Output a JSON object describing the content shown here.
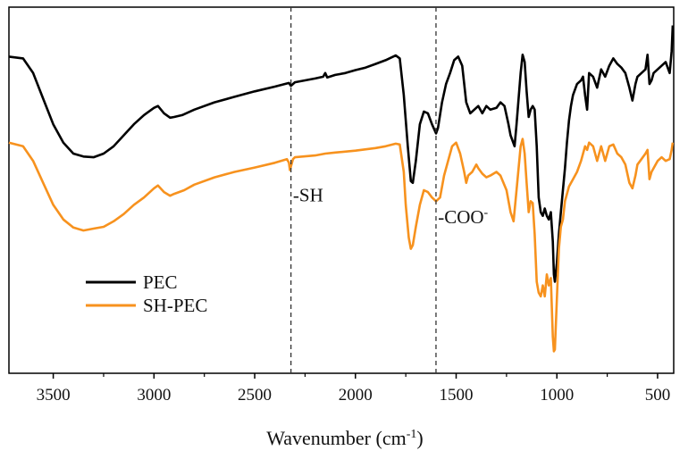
{
  "chart_data": {
    "type": "line",
    "title": "",
    "xlabel": "Wavenumber (cm",
    "xlabel_sup": "-1",
    "xlabel_close": ")",
    "ylabel": "",
    "xlim": [
      3720,
      420
    ],
    "ylim": [
      0,
      100
    ],
    "x_ticks": [
      {
        "value": 3500,
        "label": "3500"
      },
      {
        "value": 3000,
        "label": "3000"
      },
      {
        "value": 2500,
        "label": "2500"
      },
      {
        "value": 2000,
        "label": "2000"
      },
      {
        "value": 1500,
        "label": "1500"
      },
      {
        "value": 1000,
        "label": "1000"
      },
      {
        "value": 500,
        "label": "500"
      }
    ],
    "reference_lines": [
      {
        "x": 2320,
        "style": "dashed"
      },
      {
        "x": 1600,
        "style": "dashed"
      }
    ],
    "annotations": [
      {
        "x": 2310,
        "y": 47,
        "text": "-SH",
        "sup": ""
      },
      {
        "x": 1590,
        "y": 41,
        "text": "-COO",
        "sup": "-"
      }
    ],
    "legend": {
      "position": "lower-left",
      "entries": [
        {
          "label": "PEC",
          "color": "#000000"
        },
        {
          "label": "SH-PEC",
          "color": "#f7921e"
        }
      ]
    },
    "series": [
      {
        "name": "PEC",
        "color": "#000000",
        "points": [
          [
            3720,
            86.5
          ],
          [
            3650,
            86
          ],
          [
            3600,
            82
          ],
          [
            3550,
            75
          ],
          [
            3500,
            68
          ],
          [
            3450,
            63
          ],
          [
            3400,
            60
          ],
          [
            3350,
            59.2
          ],
          [
            3300,
            59
          ],
          [
            3250,
            60
          ],
          [
            3200,
            62
          ],
          [
            3150,
            65
          ],
          [
            3100,
            68
          ],
          [
            3050,
            70.5
          ],
          [
            3000,
            72.5
          ],
          [
            2980,
            73
          ],
          [
            2950,
            71
          ],
          [
            2920,
            69.8
          ],
          [
            2900,
            70
          ],
          [
            2860,
            70.5
          ],
          [
            2800,
            72
          ],
          [
            2700,
            74
          ],
          [
            2600,
            75.5
          ],
          [
            2500,
            77
          ],
          [
            2400,
            78.3
          ],
          [
            2330,
            79.3
          ],
          [
            2320,
            78.5
          ],
          [
            2300,
            79.5
          ],
          [
            2200,
            80.5
          ],
          [
            2160,
            81
          ],
          [
            2150,
            82
          ],
          [
            2140,
            80.8
          ],
          [
            2100,
            81.5
          ],
          [
            2050,
            82
          ],
          [
            2000,
            82.8
          ],
          [
            1950,
            83.5
          ],
          [
            1900,
            84.5
          ],
          [
            1850,
            85.5
          ],
          [
            1800,
            86.8
          ],
          [
            1780,
            86
          ],
          [
            1760,
            76
          ],
          [
            1740,
            62
          ],
          [
            1725,
            52.5
          ],
          [
            1715,
            52
          ],
          [
            1700,
            58
          ],
          [
            1680,
            68
          ],
          [
            1660,
            71.5
          ],
          [
            1640,
            71
          ],
          [
            1620,
            68
          ],
          [
            1600,
            65.5
          ],
          [
            1590,
            67
          ],
          [
            1570,
            74
          ],
          [
            1550,
            79
          ],
          [
            1530,
            82
          ],
          [
            1510,
            85.5
          ],
          [
            1490,
            86.5
          ],
          [
            1470,
            84
          ],
          [
            1450,
            74
          ],
          [
            1430,
            71
          ],
          [
            1410,
            72
          ],
          [
            1390,
            73
          ],
          [
            1370,
            71
          ],
          [
            1350,
            73
          ],
          [
            1330,
            72
          ],
          [
            1300,
            72.5
          ],
          [
            1280,
            74
          ],
          [
            1260,
            73
          ],
          [
            1240,
            68
          ],
          [
            1230,
            65
          ],
          [
            1210,
            62
          ],
          [
            1200,
            68
          ],
          [
            1180,
            82
          ],
          [
            1170,
            87
          ],
          [
            1160,
            85
          ],
          [
            1150,
            77
          ],
          [
            1140,
            70
          ],
          [
            1130,
            72
          ],
          [
            1120,
            73
          ],
          [
            1110,
            72
          ],
          [
            1100,
            62
          ],
          [
            1090,
            48
          ],
          [
            1080,
            44
          ],
          [
            1070,
            43
          ],
          [
            1060,
            45
          ],
          [
            1050,
            43
          ],
          [
            1040,
            42
          ],
          [
            1030,
            44
          ],
          [
            1020,
            36
          ],
          [
            1015,
            27
          ],
          [
            1010,
            25
          ],
          [
            1000,
            30
          ],
          [
            990,
            38
          ],
          [
            980,
            44
          ],
          [
            970,
            50
          ],
          [
            960,
            56
          ],
          [
            950,
            63
          ],
          [
            940,
            69
          ],
          [
            930,
            73
          ],
          [
            920,
            76
          ],
          [
            900,
            79
          ],
          [
            880,
            80
          ],
          [
            870,
            81
          ],
          [
            860,
            76
          ],
          [
            850,
            72
          ],
          [
            840,
            82
          ],
          [
            820,
            81
          ],
          [
            800,
            78
          ],
          [
            780,
            83
          ],
          [
            760,
            81
          ],
          [
            740,
            84
          ],
          [
            720,
            86
          ],
          [
            700,
            84.5
          ],
          [
            680,
            83.5
          ],
          [
            660,
            82
          ],
          [
            640,
            78
          ],
          [
            625,
            74.5
          ],
          [
            610,
            79
          ],
          [
            600,
            81
          ],
          [
            580,
            82
          ],
          [
            560,
            83
          ],
          [
            550,
            87
          ],
          [
            540,
            79
          ],
          [
            530,
            80
          ],
          [
            520,
            82
          ],
          [
            500,
            83
          ],
          [
            480,
            84
          ],
          [
            460,
            85
          ],
          [
            440,
            82
          ],
          [
            430,
            88
          ],
          [
            425,
            95
          ]
        ]
      },
      {
        "name": "SH-PEC",
        "color": "#f7921e",
        "points": [
          [
            3720,
            63
          ],
          [
            3650,
            62
          ],
          [
            3600,
            58
          ],
          [
            3550,
            52
          ],
          [
            3500,
            46
          ],
          [
            3450,
            42
          ],
          [
            3400,
            39.8
          ],
          [
            3350,
            39
          ],
          [
            3300,
            39.5
          ],
          [
            3250,
            40
          ],
          [
            3200,
            41.5
          ],
          [
            3150,
            43.5
          ],
          [
            3100,
            46
          ],
          [
            3050,
            48
          ],
          [
            3000,
            50.5
          ],
          [
            2980,
            51.3
          ],
          [
            2950,
            49.5
          ],
          [
            2920,
            48.5
          ],
          [
            2900,
            49
          ],
          [
            2850,
            50
          ],
          [
            2800,
            51.5
          ],
          [
            2700,
            53.5
          ],
          [
            2600,
            55
          ],
          [
            2500,
            56.2
          ],
          [
            2400,
            57.5
          ],
          [
            2340,
            58.5
          ],
          [
            2330,
            57.5
          ],
          [
            2325,
            55.5
          ],
          [
            2320,
            56.5
          ],
          [
            2310,
            58.5
          ],
          [
            2300,
            59
          ],
          [
            2200,
            59.5
          ],
          [
            2150,
            60
          ],
          [
            2100,
            60.3
          ],
          [
            2000,
            60.8
          ],
          [
            1900,
            61.5
          ],
          [
            1850,
            62
          ],
          [
            1800,
            62.7
          ],
          [
            1780,
            62.5
          ],
          [
            1760,
            55
          ],
          [
            1750,
            46
          ],
          [
            1735,
            37
          ],
          [
            1725,
            34
          ],
          [
            1715,
            35
          ],
          [
            1700,
            40
          ],
          [
            1680,
            46
          ],
          [
            1660,
            50
          ],
          [
            1640,
            49.5
          ],
          [
            1620,
            48
          ],
          [
            1600,
            47
          ],
          [
            1580,
            48
          ],
          [
            1560,
            54
          ],
          [
            1540,
            58
          ],
          [
            1520,
            62
          ],
          [
            1500,
            63
          ],
          [
            1480,
            60
          ],
          [
            1460,
            55
          ],
          [
            1450,
            52
          ],
          [
            1440,
            54
          ],
          [
            1420,
            55
          ],
          [
            1400,
            57
          ],
          [
            1390,
            56
          ],
          [
            1370,
            54.5
          ],
          [
            1350,
            53.5
          ],
          [
            1330,
            54
          ],
          [
            1300,
            55
          ],
          [
            1280,
            54
          ],
          [
            1250,
            50
          ],
          [
            1230,
            44
          ],
          [
            1215,
            41.5
          ],
          [
            1200,
            50
          ],
          [
            1180,
            62
          ],
          [
            1170,
            64
          ],
          [
            1160,
            60
          ],
          [
            1150,
            52
          ],
          [
            1140,
            44
          ],
          [
            1130,
            47
          ],
          [
            1120,
            46.5
          ],
          [
            1110,
            38
          ],
          [
            1100,
            25
          ],
          [
            1090,
            22
          ],
          [
            1080,
            21
          ],
          [
            1070,
            24
          ],
          [
            1060,
            21
          ],
          [
            1050,
            27
          ],
          [
            1040,
            24
          ],
          [
            1030,
            26
          ],
          [
            1020,
            10
          ],
          [
            1015,
            6
          ],
          [
            1010,
            6.5
          ],
          [
            1000,
            20
          ],
          [
            990,
            34
          ],
          [
            980,
            40
          ],
          [
            970,
            42
          ],
          [
            960,
            47
          ],
          [
            940,
            51
          ],
          [
            920,
            53
          ],
          [
            900,
            55
          ],
          [
            880,
            58
          ],
          [
            860,
            62
          ],
          [
            850,
            61
          ],
          [
            840,
            63
          ],
          [
            820,
            62
          ],
          [
            800,
            58
          ],
          [
            780,
            62
          ],
          [
            760,
            58
          ],
          [
            740,
            62
          ],
          [
            720,
            62.5
          ],
          [
            700,
            60
          ],
          [
            680,
            59
          ],
          [
            660,
            57
          ],
          [
            640,
            52
          ],
          [
            625,
            50.5
          ],
          [
            610,
            54
          ],
          [
            600,
            57
          ],
          [
            580,
            58.5
          ],
          [
            560,
            60
          ],
          [
            550,
            61
          ],
          [
            540,
            53
          ],
          [
            530,
            55
          ],
          [
            520,
            56
          ],
          [
            500,
            58
          ],
          [
            480,
            59
          ],
          [
            460,
            58
          ],
          [
            440,
            58.5
          ],
          [
            430,
            61
          ],
          [
            425,
            63
          ]
        ]
      }
    ]
  }
}
